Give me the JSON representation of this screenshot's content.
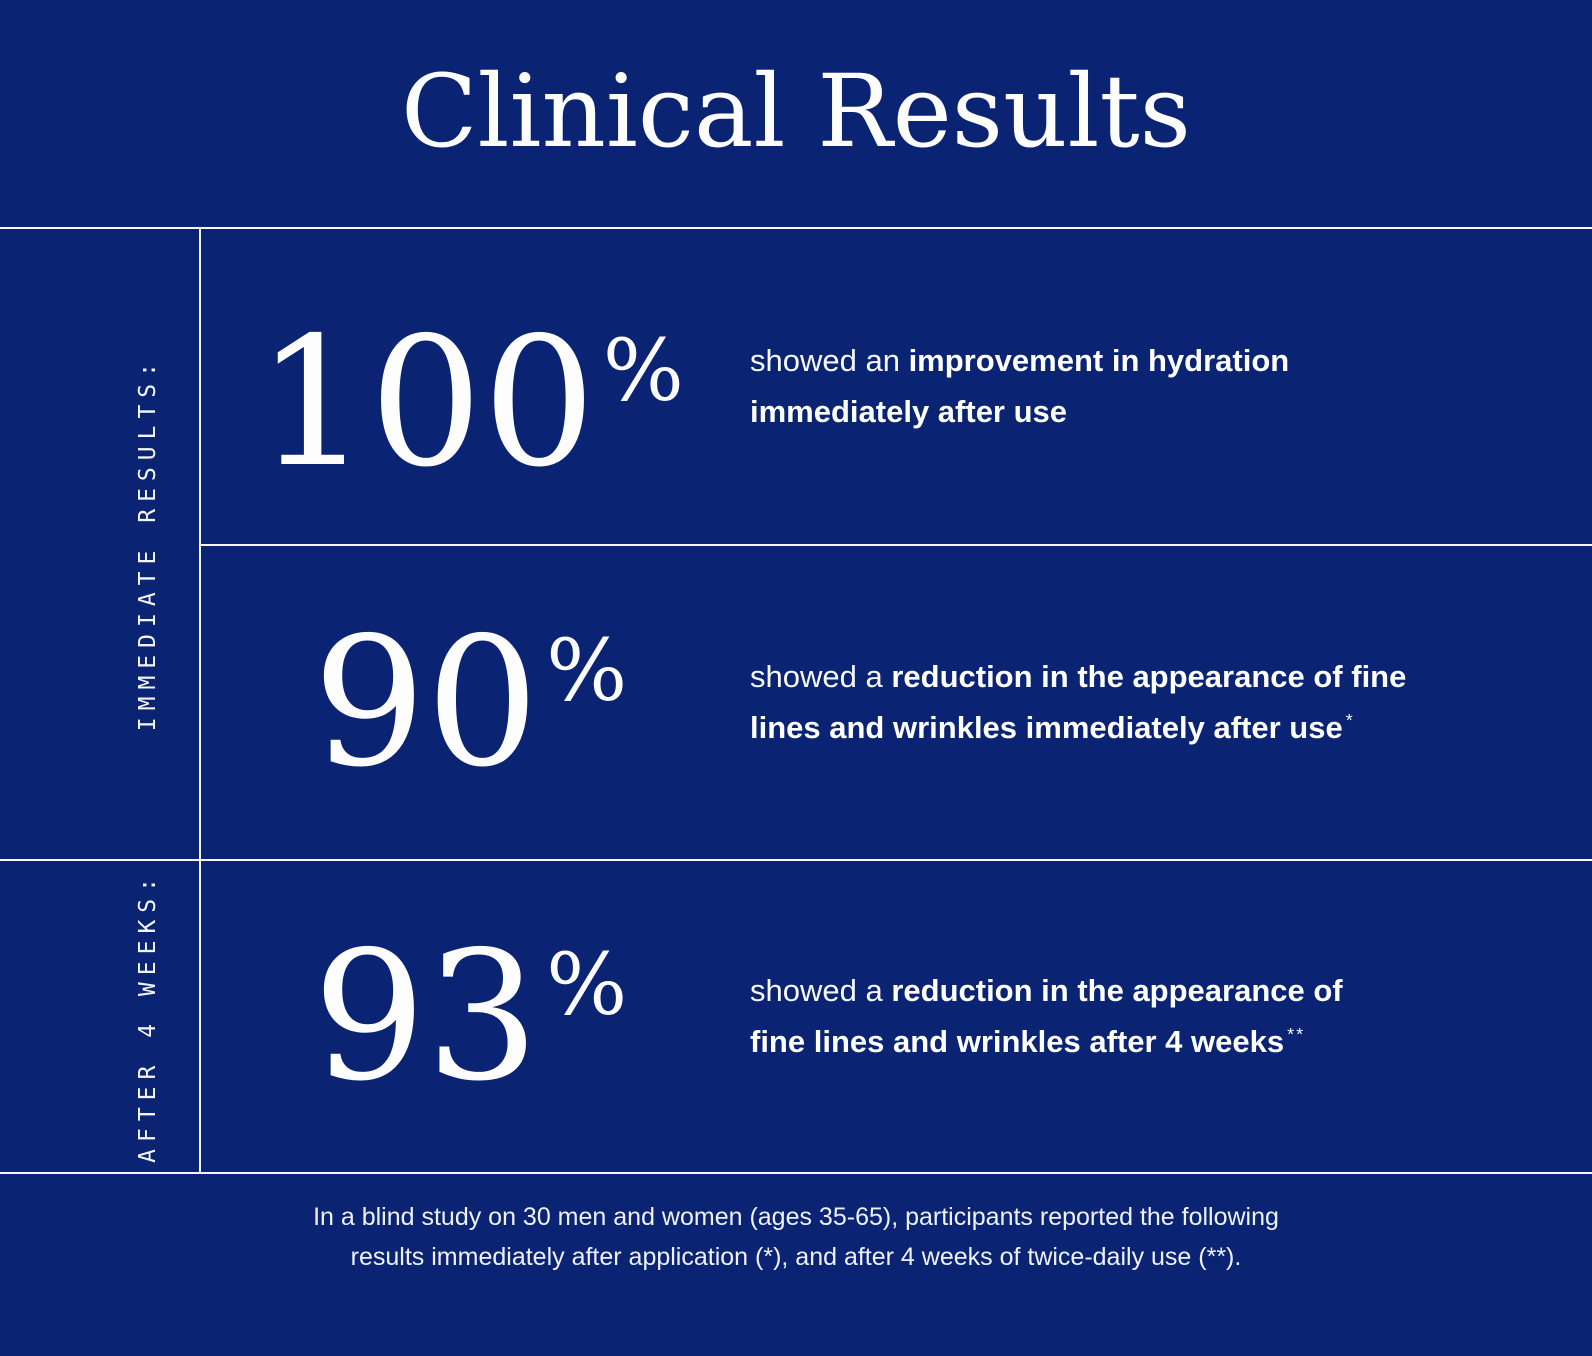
{
  "title": "Clinical Results",
  "colors": {
    "background": "#0a2473",
    "text": "#ffffff",
    "divider": "#ffffff"
  },
  "sections": [
    {
      "label": "IMMEDIATE RESULTS:"
    },
    {
      "label": "AFTER 4 WEEKS:"
    }
  ],
  "results": [
    {
      "value": "100",
      "unit": "%",
      "line1_lead": "showed an ",
      "line1_bold": "improvement in hydration",
      "line2_bold": "immediately after use",
      "footnote_marker": ""
    },
    {
      "value": "90",
      "unit": "%",
      "line1_lead": "showed a ",
      "line1_bold": "reduction in the appearance of fine",
      "line2_bold": "lines and wrinkles immediately after use",
      "footnote_marker": "*"
    },
    {
      "value": "93",
      "unit": "%",
      "line1_lead": "showed a ",
      "line1_bold": "reduction in the appearance of",
      "line2_bold": "fine lines and wrinkles after 4 weeks",
      "footnote_marker": "**"
    }
  ],
  "footer": {
    "line1": "In a blind study on 30 men and women (ages 35-65), participants reported the following",
    "line2": "results immediately after application (*), and after 4 weeks of twice-daily use (**)."
  }
}
